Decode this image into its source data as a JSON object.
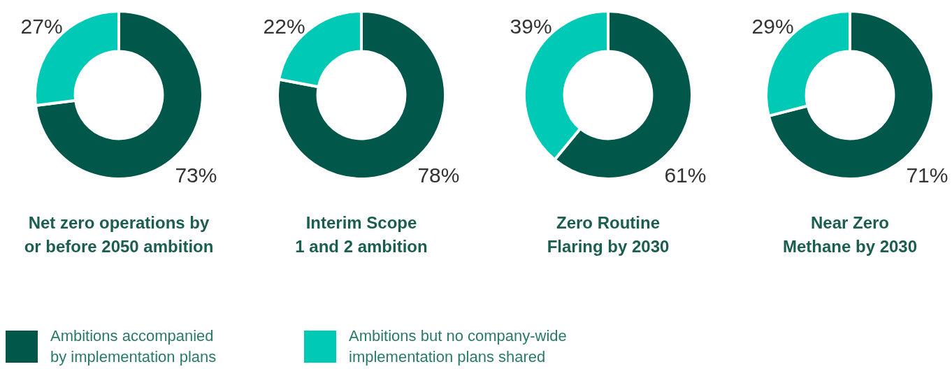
{
  "chart_data": [
    {
      "type": "donut",
      "title": "Net zero operations by\nor before 2050 ambition",
      "categories": [
        "Ambitions accompanied by implementation plans",
        "Ambitions but no company-wide implementation plans shared"
      ],
      "values": [
        73,
        27
      ],
      "value_labels": [
        "73%",
        "27%"
      ],
      "colors": [
        "#00574a",
        "#00c9b5"
      ],
      "legend": "bottom"
    },
    {
      "type": "donut",
      "title": "Interim Scope\n1 and 2 ambition",
      "categories": [
        null,
        null
      ],
      "values": [
        78,
        22
      ],
      "value_labels": [
        "78%",
        "22%"
      ],
      "colors": [
        "#00574a",
        "#00c9b5"
      ]
    },
    {
      "type": "donut",
      "title": "Zero Routine\nFlaring by 2030",
      "categories": [
        null,
        null
      ],
      "values": [
        61,
        39
      ],
      "value_labels": [
        "61%",
        "39%"
      ],
      "colors": [
        "#00574a",
        "#00c9b5"
      ]
    },
    {
      "type": "donut",
      "title": "Near Zero\nMethane by 2030",
      "categories": [
        null,
        null
      ],
      "values": [
        71,
        29
      ],
      "value_labels": [
        "71%",
        "29%"
      ],
      "colors": [
        "#00574a",
        "#00c9b5"
      ]
    }
  ]
}
